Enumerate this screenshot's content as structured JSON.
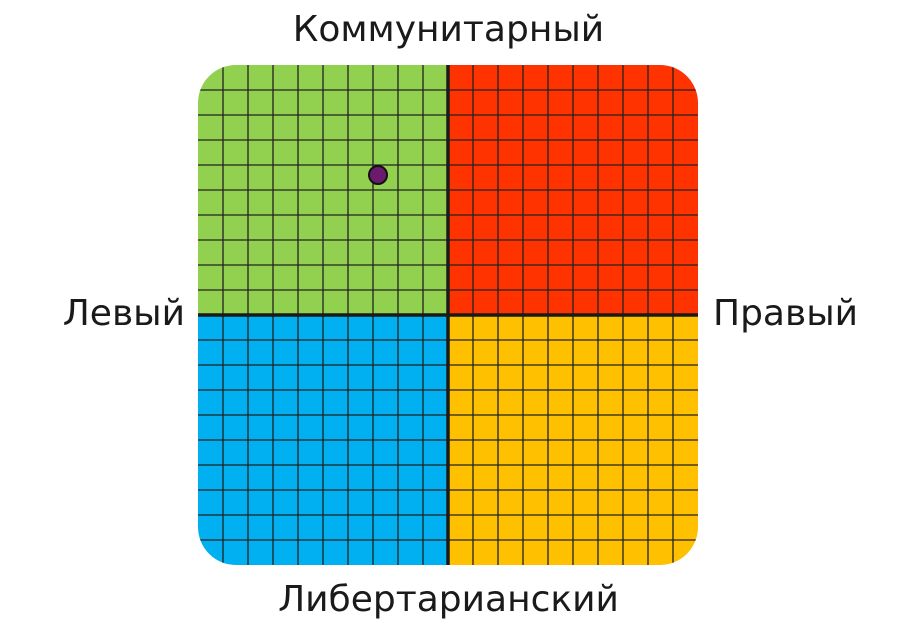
{
  "chart_data": {
    "type": "scatter",
    "title": "",
    "axis_labels": {
      "top": "Коммунитарный",
      "bottom": "Либертарианский",
      "left": "Левый",
      "right": "Правый"
    },
    "xlim": [
      -10,
      10
    ],
    "ylim": [
      -10,
      10
    ],
    "grid": true,
    "grid_step": 1,
    "quadrants": {
      "top_left": "#92D050",
      "top_right": "#FF3300",
      "bottom_left": "#00B0F0",
      "bottom_right": "#FFC000"
    },
    "points": [
      {
        "x": -2.8,
        "y": 5.6,
        "color": "#6A1B6E"
      }
    ]
  }
}
